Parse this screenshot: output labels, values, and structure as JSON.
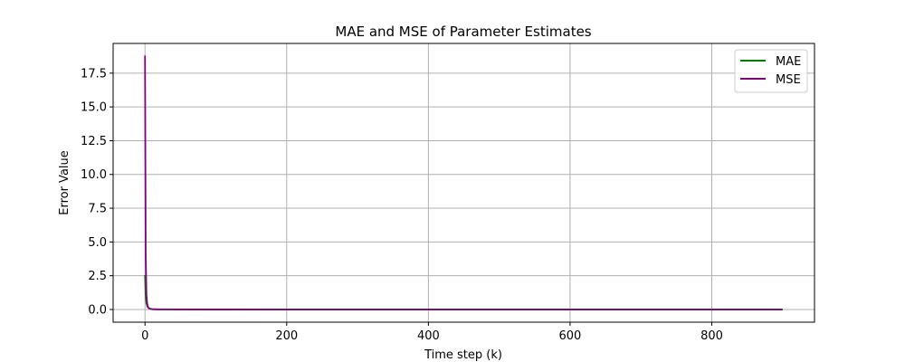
{
  "chart_data": {
    "type": "line",
    "title": "MAE and MSE of Parameter Estimates",
    "xlabel": "Time step (k)",
    "ylabel": "Error Value",
    "xlim": [
      -45,
      945
    ],
    "ylim": [
      -0.94,
      19.7
    ],
    "xticks": [
      0,
      200,
      400,
      600,
      800
    ],
    "xtick_labels": [
      "0",
      "200",
      "400",
      "600",
      "800"
    ],
    "yticks": [
      0,
      2.5,
      5,
      7.5,
      10,
      12.5,
      15,
      17.5
    ],
    "ytick_labels": [
      "0.0",
      "2.5",
      "5.0",
      "7.5",
      "10.0",
      "12.5",
      "15.0",
      "17.5"
    ],
    "grid": true,
    "legend_position": "top-right",
    "series": [
      {
        "name": "MAE",
        "color": "#008000",
        "x": [
          0,
          1,
          2,
          3,
          4,
          5,
          6,
          8,
          10,
          15,
          20,
          50,
          100,
          200,
          400,
          600,
          800,
          900
        ],
        "y": [
          2.55,
          0.9,
          0.45,
          0.28,
          0.18,
          0.12,
          0.08,
          0.05,
          0.03,
          0.015,
          0.01,
          0.005,
          0.003,
          0.002,
          0.001,
          0.001,
          0.001,
          0.001
        ]
      },
      {
        "name": "MSE",
        "color": "#800080",
        "x": [
          0,
          1,
          2,
          3,
          4,
          5,
          6,
          8,
          10,
          15,
          20,
          50,
          100,
          200,
          400,
          600,
          800,
          900
        ],
        "y": [
          18.8,
          4.0,
          1.1,
          0.45,
          0.22,
          0.12,
          0.07,
          0.04,
          0.02,
          0.01,
          0.005,
          0.002,
          0.001,
          0.0005,
          0.0002,
          0.0001,
          0.0001,
          0.0001
        ]
      }
    ]
  }
}
